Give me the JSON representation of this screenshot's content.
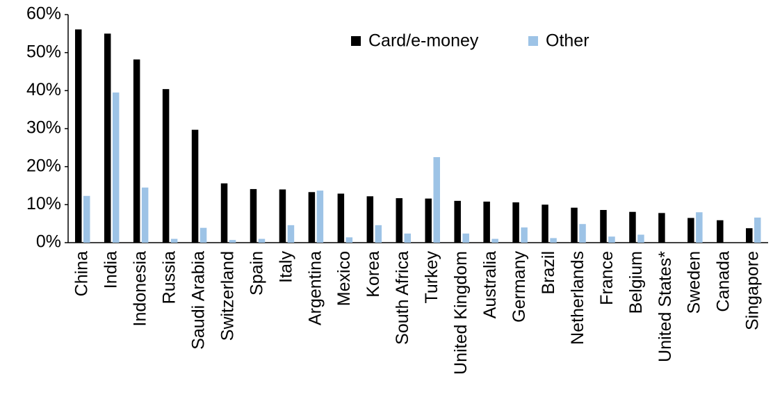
{
  "chart_data": {
    "type": "bar",
    "categories": [
      "China",
      "India",
      "Indonesia",
      "Russia",
      "Saudi Arabia",
      "Switzerland",
      "Spain",
      "Italy",
      "Argentina",
      "Mexico",
      "Korea",
      "South Africa",
      "Turkey",
      "United Kingdom",
      "Australia",
      "Germany",
      "Brazil",
      "Netherlands",
      "France",
      "Belgium",
      "United States*",
      "Sweden",
      "Canada",
      "Singapore"
    ],
    "series": [
      {
        "name": "Card/e-money",
        "color": "#000000",
        "values": [
          56.1,
          55.0,
          48.2,
          40.4,
          29.7,
          15.6,
          14.1,
          14.0,
          13.3,
          12.9,
          12.2,
          11.7,
          11.6,
          11.0,
          10.8,
          10.6,
          10.0,
          9.2,
          8.6,
          8.1,
          7.8,
          6.5,
          5.9,
          3.8
        ]
      },
      {
        "name": "Other",
        "color": "#9dc3e6",
        "values": [
          12.3,
          39.5,
          14.5,
          1.0,
          3.9,
          0.7,
          1.0,
          4.6,
          13.7,
          1.4,
          4.6,
          2.4,
          22.5,
          2.4,
          1.0,
          4.0,
          1.2,
          4.9,
          1.6,
          2.1,
          null,
          8.0,
          null,
          6.6
        ]
      }
    ],
    "ylim": [
      0,
      60
    ],
    "yticks": [
      {
        "value": 0,
        "label": "0%"
      },
      {
        "value": 10,
        "label": "10%"
      },
      {
        "value": 20,
        "label": "20%"
      },
      {
        "value": 30,
        "label": "30%"
      },
      {
        "value": 40,
        "label": "40%"
      },
      {
        "value": 50,
        "label": "50%"
      },
      {
        "value": 60,
        "label": "60%"
      }
    ],
    "legend": "top-right"
  }
}
